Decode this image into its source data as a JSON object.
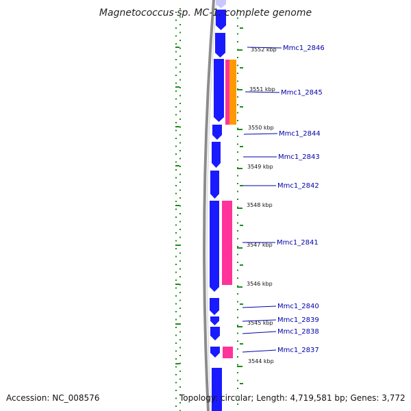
{
  "title": "Magnetococcus sp. MC-1, complete genome",
  "footer": {
    "accession": "Accession: NC_008576",
    "topology": "Topology: circular; Length: 4,719,581 bp; Genes: 3,772"
  },
  "colors": {
    "cds": "#1a1aff",
    "cds_light": "#c8c8ff",
    "rna": "#ff3399",
    "orange": "#ff9900",
    "backbone": "#8c8c8c",
    "ticks": "#1a8c1a",
    "label": "#0000aa"
  },
  "kbp_labels": [
    "3552 kbp",
    "3551 kbp",
    "3550 kbp",
    "3549 kbp",
    "3548 kbp",
    "3547 kbp",
    "3546 kbp",
    "3545 kbp",
    "3544 kbp"
  ],
  "gene_labels": [
    "Mmc1_2846",
    "Mmc1_2845",
    "Mmc1_2844",
    "Mmc1_2843",
    "Mmc1_2842",
    "Mmc1_2841",
    "Mmc1_2840",
    "Mmc1_2839",
    "Mmc1_2838",
    "Mmc1_2837"
  ]
}
